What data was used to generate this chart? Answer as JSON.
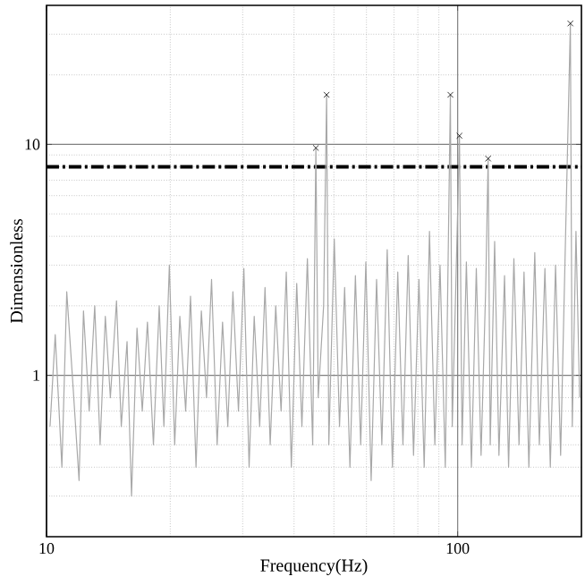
{
  "chart_data": {
    "type": "line",
    "xlabel": "Frequency(Hz)",
    "ylabel": "Dimensionless",
    "log": "xy",
    "grid": true,
    "xlim": [
      10,
      200
    ],
    "ylim": [
      0.2,
      40
    ],
    "xticks": [
      10,
      100
    ],
    "yticks": [
      1,
      10
    ],
    "ref_lines": [
      {
        "axis": "y",
        "value": 8,
        "color": "#000000",
        "line_style": "dashdot"
      }
    ],
    "series": [
      {
        "color": "#a8a8a8",
        "marker": "none",
        "x": [
          10.2,
          10.5,
          10.9,
          11.2,
          11.6,
          12.0,
          12.3,
          12.7,
          13.1,
          13.5,
          13.9,
          14.3,
          14.8,
          15.2,
          15.7,
          16.1,
          16.6,
          17.1,
          17.6,
          18.2,
          18.8,
          19.3,
          19.9,
          20.5,
          21.1,
          21.8,
          22.4,
          23.1,
          23.8,
          24.5,
          25.2,
          26.0,
          26.8,
          27.6,
          28.4,
          29.3,
          30.2,
          31.1,
          32.0,
          33.0,
          34.0,
          35.0,
          36.1,
          37.2,
          38.3,
          39.4,
          40.6,
          41.8,
          43.1,
          44.4,
          45.2,
          45.8,
          47.2,
          48.0,
          48.6,
          50.1,
          51.6,
          53.1,
          54.7,
          56.4,
          58.1,
          59.8,
          61.6,
          63.5,
          65.4,
          67.4,
          69.4,
          71.5,
          73.6,
          75.8,
          78.1,
          80.5,
          82.9,
          85.4,
          88.0,
          90.6,
          93.3,
          96.0,
          97.0,
          99.0,
          101.0,
          102.5,
          105,
          108,
          111,
          114,
          117,
          118.6,
          120,
          123,
          126,
          130,
          133,
          137,
          141,
          145,
          149,
          154,
          158,
          163,
          168,
          173,
          178,
          183,
          188,
          190,
          194,
          198
        ],
        "values": [
          0.6,
          1.5,
          0.4,
          2.3,
          0.9,
          0.35,
          1.9,
          0.7,
          2.0,
          0.5,
          1.8,
          0.8,
          2.1,
          0.6,
          1.4,
          0.3,
          1.6,
          0.7,
          1.7,
          0.5,
          2.0,
          0.6,
          3.0,
          0.5,
          1.8,
          0.7,
          2.2,
          0.4,
          1.9,
          0.8,
          2.6,
          0.5,
          1.7,
          0.6,
          2.3,
          0.7,
          2.9,
          0.4,
          1.8,
          0.6,
          2.4,
          0.5,
          2.0,
          0.7,
          2.8,
          0.4,
          2.5,
          0.6,
          3.2,
          0.5,
          9.65,
          0.8,
          2.0,
          16.4,
          0.5,
          3.9,
          0.6,
          2.4,
          0.4,
          2.7,
          0.5,
          3.1,
          0.35,
          2.6,
          0.5,
          3.5,
          0.4,
          2.8,
          0.5,
          3.3,
          0.45,
          2.6,
          0.4,
          4.2,
          0.5,
          3.0,
          0.4,
          16.4,
          0.6,
          2.5,
          10.9,
          0.5,
          3.1,
          0.4,
          2.9,
          0.45,
          2.4,
          8.68,
          0.5,
          3.8,
          0.45,
          2.7,
          0.4,
          3.2,
          0.5,
          2.8,
          0.4,
          3.4,
          0.5,
          2.9,
          0.4,
          3.0,
          0.45,
          4.0,
          33.4,
          0.6,
          4.2,
          0.8
        ]
      },
      {
        "type": "scatter",
        "color": "#000000",
        "marker": "cross",
        "x": [
          45.2,
          48.0,
          96.0,
          101.0,
          118.6,
          188
        ],
        "values": [
          9.65,
          16.4,
          16.4,
          10.9,
          8.68,
          33.4
        ]
      }
    ]
  }
}
